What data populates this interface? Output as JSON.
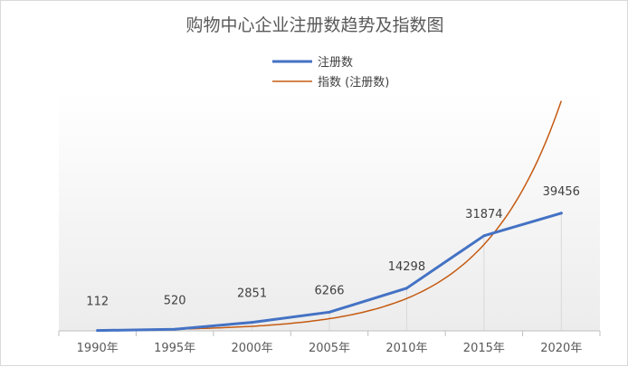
{
  "chart_data": {
    "type": "line",
    "title": "购物中心企业注册数趋势及指数图",
    "categories": [
      "1990年",
      "1995年",
      "2000年",
      "2005年",
      "2010年",
      "2015年",
      "2020年"
    ],
    "series": [
      {
        "name": "注册数",
        "values": [
          112,
          520,
          2851,
          6266,
          14298,
          31874,
          39456
        ],
        "color": "#4472c4",
        "data_labels": true
      },
      {
        "name": "指数 (注册数)",
        "type": "exponential-trendline",
        "color": "#c55a11",
        "data_labels": false
      }
    ],
    "legend": "top-center",
    "grid": false,
    "background": "vertical-gradient-gray"
  }
}
